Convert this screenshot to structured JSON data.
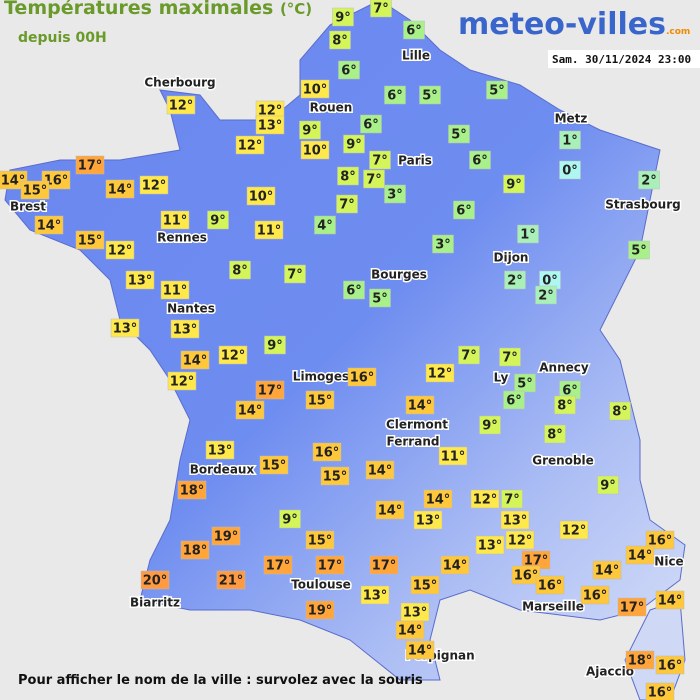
{
  "header": {
    "title": "Températures maximales",
    "unit": "(°C)",
    "subtitle": "depuis 00H",
    "logo": "meteo-villes",
    "logo_suffix": ".com",
    "timestamp": "Sam. 30/11/2024 23:00"
  },
  "footer": "Pour afficher le nom de la ville : survolez avec la souris",
  "cities": [
    "Cherbourg",
    "Lille",
    "Rouen",
    "Paris",
    "Metz",
    "Strasbourg",
    "Brest",
    "Rennes",
    "Dijon",
    "Bourges",
    "Nantes",
    "Annecy",
    "Limoges",
    "Ly",
    "Clermont",
    "Ferrand",
    "Grenoble",
    "Bordeaux",
    "Nice",
    "Toulouse",
    "Marseille",
    "Biarritz",
    "Perpignan",
    "Ajaccio"
  ],
  "temps": [
    {
      "label": "9°",
      "color": "#d4f55a"
    },
    {
      "label": "7°",
      "color": "#d4f55a"
    },
    {
      "label": "6°",
      "color": "#a8f08a"
    },
    {
      "label": "8°",
      "color": "#d4f55a"
    },
    {
      "label": "6°",
      "color": "#a8f08a"
    },
    {
      "label": "10°",
      "color": "#ffe84a"
    },
    {
      "label": "6°",
      "color": "#a8f08a"
    },
    {
      "label": "5°",
      "color": "#a8f08a"
    },
    {
      "label": "5°",
      "color": "#a8f08a"
    },
    {
      "label": "12°",
      "color": "#ffe84a"
    },
    {
      "label": "13°",
      "color": "#ffe84a"
    },
    {
      "label": "9°",
      "color": "#d4f55a"
    },
    {
      "label": "6°",
      "color": "#a8f08a"
    },
    {
      "label": "9°",
      "color": "#d4f55a"
    },
    {
      "label": "10°",
      "color": "#ffe84a"
    },
    {
      "label": "7°",
      "color": "#d4f55a"
    },
    {
      "label": "5°",
      "color": "#a8f08a"
    },
    {
      "label": "6°",
      "color": "#a8f08a"
    },
    {
      "label": "1°",
      "color": "#a8f0b8"
    },
    {
      "label": "0°",
      "color": "#aef7f0"
    },
    {
      "label": "8°",
      "color": "#d4f55a"
    },
    {
      "label": "7°",
      "color": "#d4f55a"
    },
    {
      "label": "3°",
      "color": "#a8f08a"
    },
    {
      "label": "9°",
      "color": "#d4f55a"
    },
    {
      "label": "2°",
      "color": "#a8f0b8"
    },
    {
      "label": "12°",
      "color": "#ffe84a"
    },
    {
      "label": "12°",
      "color": "#ffe84a"
    },
    {
      "label": "17°",
      "color": "#ffa53a"
    },
    {
      "label": "14°",
      "color": "#ffc83a"
    },
    {
      "label": "16°",
      "color": "#ffc83a"
    },
    {
      "label": "15°",
      "color": "#ffc83a"
    },
    {
      "label": "14°",
      "color": "#ffc83a"
    },
    {
      "label": "12°",
      "color": "#ffe84a"
    },
    {
      "label": "10°",
      "color": "#ffe84a"
    },
    {
      "label": "7°",
      "color": "#d4f55a"
    },
    {
      "label": "6°",
      "color": "#a8f08a"
    },
    {
      "label": "11°",
      "color": "#ffe84a"
    },
    {
      "label": "9°",
      "color": "#d4f55a"
    },
    {
      "label": "11°",
      "color": "#ffe84a"
    },
    {
      "label": "4°",
      "color": "#a8f08a"
    },
    {
      "label": "14°",
      "color": "#ffc83a"
    },
    {
      "label": "15°",
      "color": "#ffc83a"
    },
    {
      "label": "12°",
      "color": "#ffe84a"
    },
    {
      "label": "3°",
      "color": "#a8f08a"
    },
    {
      "label": "1°",
      "color": "#a8f0b8"
    },
    {
      "label": "5°",
      "color": "#a8f08a"
    },
    {
      "label": "8°",
      "color": "#d4f55a"
    },
    {
      "label": "7°",
      "color": "#d4f55a"
    },
    {
      "label": "13°",
      "color": "#ffe84a"
    },
    {
      "label": "11°",
      "color": "#ffe84a"
    },
    {
      "label": "6°",
      "color": "#a8f08a"
    },
    {
      "label": "5°",
      "color": "#a8f08a"
    },
    {
      "label": "2°",
      "color": "#a8f0b8"
    },
    {
      "label": "0°",
      "color": "#aef7f0"
    },
    {
      "label": "2°",
      "color": "#a8f0b8"
    },
    {
      "label": "13°",
      "color": "#ffe84a"
    },
    {
      "label": "13°",
      "color": "#ffe84a"
    },
    {
      "label": "9°",
      "color": "#d4f55a"
    },
    {
      "label": "12°",
      "color": "#ffe84a"
    },
    {
      "label": "14°",
      "color": "#ffc83a"
    },
    {
      "label": "12°",
      "color": "#ffe84a"
    },
    {
      "label": "7°",
      "color": "#d4f55a"
    },
    {
      "label": "7°",
      "color": "#d4f55a"
    },
    {
      "label": "12°",
      "color": "#ffe84a"
    },
    {
      "label": "16°",
      "color": "#ffc83a"
    },
    {
      "label": "17°",
      "color": "#ffa53a"
    },
    {
      "label": "5°",
      "color": "#a8f08a"
    },
    {
      "label": "6°",
      "color": "#a8f08a"
    },
    {
      "label": "6°",
      "color": "#a8f08a"
    },
    {
      "label": "8°",
      "color": "#d4f55a"
    },
    {
      "label": "8°",
      "color": "#d4f55a"
    },
    {
      "label": "15°",
      "color": "#ffc83a"
    },
    {
      "label": "14°",
      "color": "#ffc83a"
    },
    {
      "label": "14°",
      "color": "#ffc83a"
    },
    {
      "label": "9°",
      "color": "#d4f55a"
    },
    {
      "label": "8°",
      "color": "#d4f55a"
    },
    {
      "label": "13°",
      "color": "#ffe84a"
    },
    {
      "label": "16°",
      "color": "#ffc83a"
    },
    {
      "label": "11°",
      "color": "#ffe84a"
    },
    {
      "label": "15°",
      "color": "#ffc83a"
    },
    {
      "label": "15°",
      "color": "#ffc83a"
    },
    {
      "label": "14°",
      "color": "#ffc83a"
    },
    {
      "label": "18°",
      "color": "#ffa53a"
    },
    {
      "label": "14°",
      "color": "#ffc83a"
    },
    {
      "label": "12°",
      "color": "#ffe84a"
    },
    {
      "label": "7°",
      "color": "#d4f55a"
    },
    {
      "label": "9°",
      "color": "#d4f55a"
    },
    {
      "label": "14°",
      "color": "#ffc83a"
    },
    {
      "label": "13°",
      "color": "#ffe84a"
    },
    {
      "label": "13°",
      "color": "#ffe84a"
    },
    {
      "label": "12°",
      "color": "#ffe84a"
    },
    {
      "label": "19°",
      "color": "#ffa53a"
    },
    {
      "label": "9°",
      "color": "#d4f55a"
    },
    {
      "label": "18°",
      "color": "#ffa53a"
    },
    {
      "label": "15°",
      "color": "#ffc83a"
    },
    {
      "label": "13°",
      "color": "#ffe84a"
    },
    {
      "label": "12°",
      "color": "#ffe84a"
    },
    {
      "label": "16°",
      "color": "#ffc83a"
    },
    {
      "label": "14°",
      "color": "#ffc83a"
    },
    {
      "label": "17°",
      "color": "#ffa53a"
    },
    {
      "label": "16°",
      "color": "#ffc83a"
    },
    {
      "label": "17°",
      "color": "#ffa53a"
    },
    {
      "label": "17°",
      "color": "#ffa53a"
    },
    {
      "label": "17°",
      "color": "#ffa53a"
    },
    {
      "label": "14°",
      "color": "#ffc83a"
    },
    {
      "label": "16°",
      "color": "#ffc83a"
    },
    {
      "label": "14°",
      "color": "#ffc83a"
    },
    {
      "label": "20°",
      "color": "#ff9a40"
    },
    {
      "label": "21°",
      "color": "#ff9a40"
    },
    {
      "label": "15°",
      "color": "#ffc83a"
    },
    {
      "label": "16°",
      "color": "#ffc83a"
    },
    {
      "label": "13°",
      "color": "#ffe84a"
    },
    {
      "label": "17°",
      "color": "#ffa53a"
    },
    {
      "label": "14°",
      "color": "#ffc83a"
    },
    {
      "label": "19°",
      "color": "#ffa53a"
    },
    {
      "label": "13°",
      "color": "#ffe84a"
    },
    {
      "label": "14°",
      "color": "#ffc83a"
    },
    {
      "label": "14°",
      "color": "#ffc83a"
    },
    {
      "label": "18°",
      "color": "#ffa53a"
    },
    {
      "label": "16°",
      "color": "#ffc83a"
    },
    {
      "label": "16°",
      "color": "#ffc83a"
    }
  ]
}
